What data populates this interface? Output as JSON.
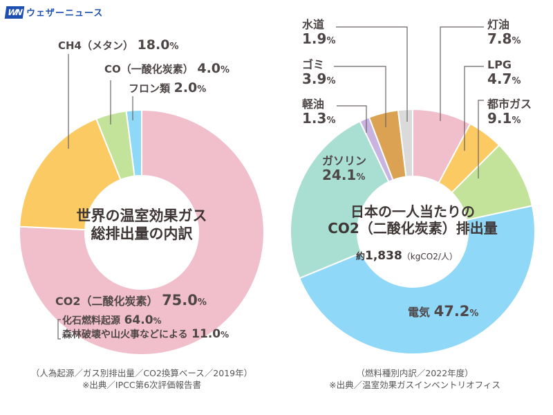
{
  "brand": {
    "logo_mark": "WN",
    "name": "ウェザーニュース",
    "color": "#1d4fb3"
  },
  "chart_data": [
    {
      "type": "pie",
      "variant": "donut",
      "title": "世界の温室効果ガス総排出量の内訳",
      "title_lines": [
        "世界の温室効果ガス",
        "総排出量の内訳"
      ],
      "start": "top",
      "direction": "clockwise",
      "unit": "%",
      "slices": [
        {
          "label": "CO2（二酸化炭素）",
          "value": 75.0,
          "color": "#f0bfcb",
          "breakdown": [
            {
              "label": "化石燃料起源",
              "value": 64.0
            },
            {
              "label": "森林破壊や山火事などによる",
              "value": 11.0
            }
          ]
        },
        {
          "label": "CH4（メタン）",
          "value": 18.0,
          "color": "#fcca62"
        },
        {
          "label": "CO（一酸化炭素）",
          "value": 4.0,
          "color": "#c4e39a"
        },
        {
          "label": "フロン類",
          "value": 2.0,
          "color": "#8fd8f8"
        }
      ],
      "caption": "（人為起源／ガス別排出量／CO2換算ベース／2019年）",
      "source": "※出典／IPCC第6次評価報告書"
    },
    {
      "type": "pie",
      "variant": "donut",
      "title": "日本の一人当たりのCO2（二酸化炭素）排出量",
      "title_lines": [
        "日本の一人当たりの",
        "CO2（二酸化炭素）排出量"
      ],
      "total_prefix": "約",
      "total_value": "1,838",
      "total_unit": "（kgCO2/人）",
      "start": "top",
      "direction": "clockwise",
      "unit": "%",
      "slices": [
        {
          "label": "灯油",
          "value": 7.8,
          "color": "#f0bfcb"
        },
        {
          "label": "LPG",
          "value": 4.7,
          "color": "#fcca62"
        },
        {
          "label": "都市ガス",
          "value": 9.1,
          "color": "#c4e39a"
        },
        {
          "label": "電気",
          "value": 47.2,
          "color": "#8fd8f8"
        },
        {
          "label": "ガソリン",
          "value": 24.1,
          "color": "#a9ded2"
        },
        {
          "label": "軽油",
          "value": 1.3,
          "color": "#c9b3e0"
        },
        {
          "label": "ゴミ",
          "value": 3.9,
          "color": "#dca253"
        },
        {
          "label": "水道",
          "value": 1.9,
          "color": "#dadada"
        }
      ],
      "caption": "（燃料種別内訳／2022年度）",
      "source": "※出典／温室効果ガスインベントリオフィス"
    }
  ],
  "labels": {
    "left": {
      "ch4_name": "CH4（メタン）",
      "ch4_val": "18.0",
      "co_name": "CO（一酸化炭素）",
      "co_val": "4.0",
      "freon_name": "フロン類",
      "freon_val": "2.0",
      "co2_name": "CO2（二酸化炭素）",
      "co2_val": "75.0",
      "fossil_name": "化石燃料起源",
      "fossil_val": "64.0",
      "forest_name": "森林破壊や山火事などによる",
      "forest_val": "11.0"
    },
    "right": {
      "water_name": "水道",
      "water_val": "1.9",
      "garbage_name": "ゴミ",
      "garbage_val": "3.9",
      "diesel_name": "軽油",
      "diesel_val": "1.3",
      "gasoline_name": "ガソリン",
      "gasoline_val": "24.1",
      "kerosene_name": "灯油",
      "kerosene_val": "7.8",
      "lpg_name": "LPG",
      "lpg_val": "4.7",
      "citygas_name": "都市ガス",
      "citygas_val": "9.1",
      "electric_name": "電気",
      "electric_val": "47.2"
    },
    "pct": "%"
  }
}
